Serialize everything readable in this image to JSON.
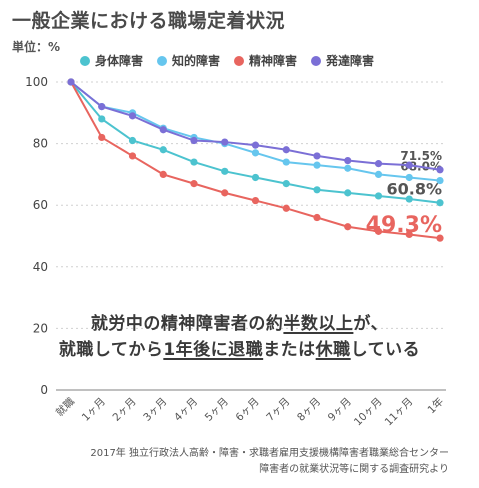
{
  "title": "一般企業における職場定着状況",
  "unit_label": "単位：%",
  "colors": {
    "physical": "#4cc3cf",
    "intellectual": "#66c6ee",
    "mental": "#e8655f",
    "developmental": "#7b6fd6",
    "grid": "#d0d0d0",
    "axis": "#9a9a9a"
  },
  "chart_data": {
    "type": "line",
    "title": "一般企業における職場定着状況",
    "xlabel": "",
    "ylabel": "単位：%",
    "ylim": [
      0,
      100
    ],
    "yticks": [
      0,
      20,
      40,
      60,
      80,
      100
    ],
    "grid": true,
    "legend_position": "top",
    "categories": [
      "就職",
      "1ヶ月",
      "2ヶ月",
      "3ヶ月",
      "4ヶ月",
      "5ヶ月",
      "6ヶ月",
      "7ヶ月",
      "8ヶ月",
      "9ヶ月",
      "10ヶ月",
      "11ヶ月",
      "1年"
    ],
    "series": [
      {
        "name": "身体障害",
        "key": "physical",
        "values": [
          100,
          88,
          81,
          78,
          74,
          71,
          69,
          67,
          65,
          64,
          63,
          62,
          60.8
        ],
        "end_label": "60.8%"
      },
      {
        "name": "知的障害",
        "key": "intellectual",
        "values": [
          100,
          92,
          90,
          85,
          82,
          80,
          77,
          74,
          73,
          72,
          70,
          69,
          68.0
        ],
        "end_label": "68.0%"
      },
      {
        "name": "精神障害",
        "key": "mental",
        "values": [
          100,
          82,
          76,
          70,
          67,
          64,
          61.5,
          59,
          56,
          53,
          51.5,
          50.5,
          49.3
        ],
        "end_label": "49.3%"
      },
      {
        "name": "発達障害",
        "key": "developmental",
        "values": [
          100,
          92,
          89,
          84.5,
          81,
          80.5,
          79.5,
          78,
          76,
          74.5,
          73.5,
          73,
          71.5
        ],
        "end_label": "71.5%"
      }
    ],
    "annotations": {
      "line1": {
        "pre": "就労中の精神障害者の約",
        "em": "半数以上",
        "post": "が、"
      },
      "line2": {
        "pre": "就職してから",
        "em": "1年後に退職",
        "mid": "または",
        "em2": "休職",
        "post": "している"
      }
    }
  },
  "source": {
    "line1": "2017年 独立行政法人高齢・障害・求職者雇用支援機構障害者職業総合センター",
    "line2": "障害者の就業状況等に関する調査研究より"
  }
}
